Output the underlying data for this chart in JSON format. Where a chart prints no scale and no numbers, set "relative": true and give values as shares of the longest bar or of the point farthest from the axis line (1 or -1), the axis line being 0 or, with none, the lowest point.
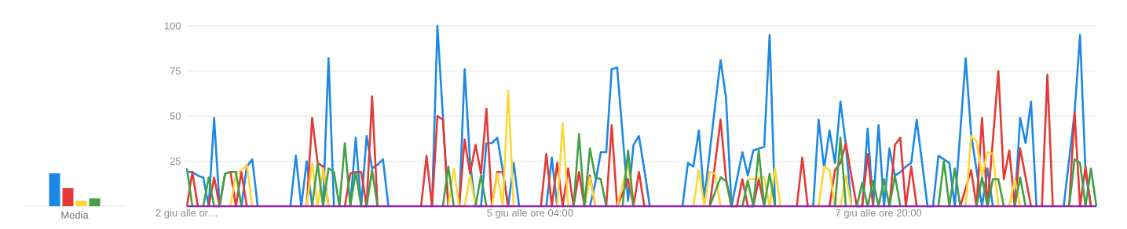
{
  "chart_data": [
    {
      "type": "bar",
      "relative": true,
      "xlabel": "Media",
      "categories": [
        null
      ],
      "series": [
        {
          "color": "#1e88e5",
          "values": [
            1
          ]
        },
        {
          "color": "#e53935",
          "values": [
            0.55
          ]
        },
        {
          "color": "#fdd835",
          "values": [
            0.17
          ]
        },
        {
          "color": "#43a047",
          "values": [
            0.24
          ]
        }
      ]
    },
    {
      "type": "line",
      "ylim": [
        0,
        100
      ],
      "categories": [
        "2 giu alle or…",
        null,
        null,
        null,
        null,
        null,
        null,
        null,
        null,
        null,
        null,
        null,
        null,
        null,
        null,
        null,
        null,
        null,
        null,
        null,
        null,
        null,
        null,
        null,
        null,
        null,
        null,
        null,
        null,
        null,
        null,
        null,
        null,
        null,
        null,
        null,
        null,
        null,
        null,
        null,
        null,
        null,
        null,
        null,
        null,
        null,
        null,
        null,
        null,
        null,
        null,
        null,
        null,
        null,
        null,
        null,
        null,
        null,
        null,
        null,
        null,
        null,
        null,
        "5 giu alle ore 04:00",
        null,
        null,
        null,
        null,
        null,
        null,
        null,
        null,
        null,
        null,
        null,
        null,
        null,
        null,
        null,
        null,
        null,
        null,
        null,
        null,
        null,
        null,
        null,
        null,
        null,
        null,
        null,
        null,
        null,
        null,
        null,
        null,
        null,
        null,
        null,
        null,
        null,
        null,
        null,
        null,
        null,
        null,
        null,
        null,
        null,
        null,
        null,
        null,
        null,
        null,
        null,
        null,
        null,
        null,
        null,
        null,
        null,
        null,
        null,
        null,
        null,
        null,
        null,
        "7 giu alle ore 20:00",
        null,
        null,
        null,
        null,
        null,
        null,
        null,
        null,
        null,
        null,
        null,
        null,
        null,
        null,
        null,
        null,
        null,
        null,
        null,
        null,
        null,
        null,
        null,
        null,
        null,
        null,
        null,
        null,
        null,
        null,
        null,
        null,
        null,
        null,
        null,
        null,
        null,
        null,
        null,
        null
      ],
      "yticks": [
        25,
        50,
        75,
        100
      ],
      "grid": "y",
      "marker": "none",
      "line_style": "solid",
      "series": [
        {
          "color": "#1e88e5",
          "values": [
            19,
            19,
            17,
            16,
            0,
            49,
            0,
            null,
            null,
            null,
            0,
            22,
            26,
            0,
            null,
            null,
            null,
            null,
            null,
            0,
            28,
            0,
            25,
            0,
            null,
            0,
            82,
            0,
            null,
            null,
            0,
            38,
            0,
            39,
            21,
            23,
            26,
            0,
            null,
            null,
            null,
            null,
            null,
            null,
            null,
            0,
            100,
            50,
            0,
            null,
            0,
            76,
            24,
            0,
            0,
            35,
            35,
            38,
            20,
            0,
            24,
            0,
            null,
            null,
            null,
            null,
            0,
            27,
            0,
            null,
            null,
            null,
            null,
            null,
            0,
            13,
            30,
            30,
            76,
            77,
            40,
            3,
            34,
            39,
            20,
            0,
            null,
            null,
            null,
            null,
            null,
            0,
            24,
            22,
            42,
            4,
            30,
            56,
            81,
            60,
            0,
            15,
            30,
            17,
            31,
            32,
            33,
            95,
            0,
            null,
            null,
            null,
            null,
            null,
            null,
            0,
            48,
            21,
            42,
            24,
            58,
            34,
            0,
            null,
            0,
            43,
            0,
            45,
            0,
            32,
            17,
            19,
            22,
            24,
            48,
            24,
            0,
            0,
            28,
            26,
            24,
            0,
            41,
            82,
            40,
            20,
            0,
            21,
            0,
            null,
            null,
            null,
            0,
            49,
            35,
            58,
            0,
            null,
            null,
            null,
            null,
            0,
            26,
            52,
            95,
            19,
            0,
            null
          ]
        },
        {
          "color": "#e53935",
          "values": [
            0,
            19,
            0,
            null,
            0,
            16,
            0,
            18,
            19,
            0,
            19,
            0,
            null,
            null,
            null,
            null,
            null,
            null,
            null,
            null,
            null,
            null,
            0,
            49,
            24,
            22,
            0,
            null,
            null,
            0,
            18,
            19,
            19,
            0,
            61,
            0,
            null,
            null,
            null,
            null,
            null,
            null,
            null,
            0,
            28,
            0,
            50,
            48,
            0,
            null,
            0,
            37,
            18,
            34,
            18,
            54,
            0,
            19,
            19,
            0,
            null,
            null,
            null,
            null,
            null,
            0,
            29,
            0,
            24,
            0,
            21,
            0,
            19,
            0,
            17,
            0,
            null,
            0,
            45,
            0,
            7,
            15,
            0,
            19,
            0,
            null,
            null,
            null,
            null,
            null,
            null,
            null,
            null,
            null,
            null,
            null,
            0,
            24,
            48,
            15,
            0,
            0,
            15,
            0,
            0,
            15,
            0,
            null,
            null,
            null,
            null,
            null,
            0,
            27,
            0,
            null,
            null,
            null,
            0,
            20,
            24,
            35,
            17,
            0,
            0,
            29,
            0,
            null,
            null,
            0,
            34,
            38,
            0,
            22,
            0,
            null,
            null,
            null,
            null,
            null,
            null,
            null,
            0,
            10,
            20,
            0,
            49,
            0,
            37,
            75,
            15,
            31,
            0,
            32,
            16,
            0,
            null,
            0,
            73,
            0,
            null,
            null,
            0,
            52,
            0,
            22,
            0,
            null
          ]
        },
        {
          "color": "#fdd835",
          "values": [
            null,
            null,
            null,
            null,
            null,
            null,
            null,
            null,
            0,
            18,
            20,
            23,
            0,
            null,
            null,
            null,
            null,
            null,
            null,
            null,
            null,
            null,
            0,
            24,
            0,
            21,
            0,
            null,
            null,
            null,
            null,
            null,
            null,
            null,
            null,
            null,
            null,
            null,
            null,
            null,
            null,
            null,
            null,
            null,
            null,
            null,
            null,
            null,
            0,
            21,
            0,
            0,
            17,
            0,
            null,
            null,
            0,
            18,
            0,
            64,
            0,
            null,
            null,
            null,
            null,
            null,
            null,
            null,
            0,
            46,
            0,
            null,
            null,
            0,
            16,
            0,
            null,
            null,
            null,
            0,
            12,
            24,
            0,
            null,
            null,
            null,
            null,
            null,
            null,
            null,
            null,
            null,
            null,
            0,
            20,
            0,
            19,
            18,
            0,
            null,
            null,
            null,
            0,
            15,
            15,
            16,
            16,
            0,
            21,
            0,
            null,
            null,
            null,
            null,
            null,
            null,
            0,
            22,
            20,
            0,
            0,
            17,
            0,
            null,
            null,
            null,
            null,
            null,
            null,
            null,
            null,
            null,
            null,
            null,
            null,
            null,
            null,
            null,
            null,
            null,
            null,
            null,
            null,
            0,
            39,
            36,
            17,
            30,
            29,
            0,
            null,
            0,
            15,
            0,
            null,
            null,
            null,
            null,
            null,
            null,
            null,
            null,
            null,
            null,
            null,
            null,
            null,
            null
          ]
        },
        {
          "color": "#43a047",
          "values": [
            21,
            0,
            null,
            0,
            16,
            0,
            0,
            18,
            19,
            19,
            0,
            null,
            null,
            null,
            null,
            null,
            null,
            null,
            null,
            null,
            null,
            null,
            null,
            0,
            24,
            0,
            21,
            19,
            0,
            35,
            0,
            19,
            0,
            0,
            20,
            0,
            null,
            null,
            null,
            null,
            null,
            null,
            null,
            null,
            null,
            null,
            null,
            0,
            22,
            0,
            null,
            null,
            null,
            0,
            17,
            0,
            null,
            null,
            null,
            null,
            null,
            null,
            null,
            null,
            null,
            null,
            null,
            null,
            null,
            null,
            null,
            0,
            40,
            0,
            32,
            16,
            15,
            0,
            null,
            null,
            0,
            31,
            0,
            null,
            null,
            null,
            null,
            null,
            null,
            null,
            null,
            null,
            null,
            null,
            null,
            null,
            0,
            8,
            16,
            14,
            0,
            null,
            0,
            14,
            0,
            31,
            0,
            18,
            0,
            null,
            null,
            null,
            null,
            null,
            null,
            null,
            null,
            null,
            null,
            0,
            38,
            0,
            null,
            0,
            13,
            0,
            14,
            0,
            15,
            0,
            17,
            0,
            null,
            null,
            null,
            null,
            null,
            null,
            0,
            25,
            0,
            21,
            0,
            null,
            null,
            0,
            16,
            0,
            15,
            15,
            0,
            null,
            0,
            16,
            0,
            null,
            null,
            null,
            null,
            null,
            null,
            null,
            0,
            26,
            24,
            0,
            21,
            0
          ]
        },
        {
          "color": "#8e24aa",
          "values": [
            0,
            0,
            0,
            0,
            0,
            0,
            0,
            0,
            0,
            0,
            0,
            0,
            0,
            0,
            0,
            0,
            0,
            0,
            0,
            0,
            0,
            0,
            0,
            0,
            0,
            0,
            0,
            0,
            0,
            0,
            0,
            0,
            0,
            0,
            0,
            0,
            0,
            0,
            0,
            0,
            0,
            0,
            0,
            0,
            0,
            0,
            0,
            0,
            0,
            0,
            0,
            0,
            0,
            0,
            0,
            0,
            0,
            0,
            0,
            0,
            0,
            0,
            0,
            0,
            0,
            0,
            0,
            0,
            0,
            0,
            0,
            0,
            0,
            0,
            0,
            0,
            0,
            0,
            0,
            0,
            0,
            0,
            0,
            0,
            0,
            0,
            0,
            0,
            0,
            0,
            0,
            0,
            0,
            0,
            0,
            0,
            0,
            0,
            0,
            0,
            0,
            0,
            0,
            0,
            0,
            0,
            0,
            0,
            0,
            0,
            0,
            0,
            0,
            0,
            0,
            0,
            0,
            0,
            0,
            0,
            0,
            0,
            0,
            0,
            0,
            0,
            0,
            0,
            0,
            0,
            0,
            0,
            0,
            0,
            0,
            0,
            0,
            0,
            0,
            0,
            0,
            0,
            0,
            0,
            0,
            0,
            0,
            0,
            0,
            0,
            0,
            0,
            0,
            0,
            0,
            0,
            0,
            0,
            0,
            0,
            0,
            0,
            0,
            0,
            0,
            0,
            0,
            0
          ]
        }
      ]
    }
  ]
}
